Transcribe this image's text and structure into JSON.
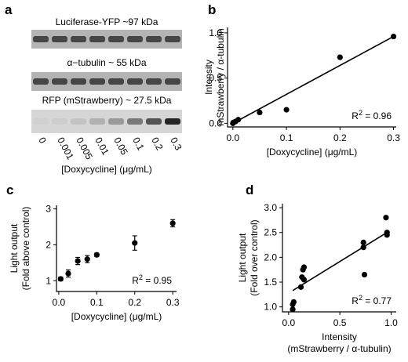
{
  "blot": {
    "panel": "a",
    "bands": [
      "Luciferase-YFP ~97 kDa",
      "α−tubulin ~ 55 kDa",
      "RFP (mStrawberry) ~ 27.5 kDa"
    ],
    "lanes": [
      "0",
      "0.001",
      "0.005",
      "0.01",
      "0.05",
      "0.1",
      "0.2",
      "0.3"
    ],
    "xlabel": "[Doxycycline] (μg/mL)"
  },
  "chart_data": [
    {
      "type": "scatter",
      "panel": "b",
      "ylabel": [
        "Intensity",
        "mStrawberry / α-tubulin"
      ],
      "xlabel": [
        "[Doxycycline] (μg/mL)"
      ],
      "x": [
        0,
        0.001,
        0.005,
        0.01,
        0.05,
        0.1,
        0.2,
        0.3
      ],
      "values": [
        0.0,
        0.01,
        0.02,
        0.04,
        0.12,
        0.15,
        0.73,
        0.96
      ],
      "fit": {
        "x": [
          0,
          0.3
        ],
        "values": [
          0.0,
          0.96
        ]
      },
      "annotation": {
        "base": "R",
        "sup": "2",
        "rest": " = 0.96"
      },
      "color": "#000000",
      "xlim": [
        -0.01,
        0.305
      ],
      "ylim": [
        -0.04,
        1.06
      ],
      "xticks": [
        {
          "value": 0,
          "label": "0.0"
        },
        0.1,
        0.2,
        0.3
      ],
      "yticks": [
        {
          "value": 0,
          "label": "0.0"
        },
        0.5,
        {
          "value": 1,
          "label": "1.0"
        }
      ]
    },
    {
      "type": "scatter",
      "panel": "c",
      "ylabel": [
        "Light output",
        "(Fold above control)"
      ],
      "xlabel": [
        "[Doxycycline] (μg/mL)"
      ],
      "x": [
        0.005,
        0.025,
        0.05,
        0.075,
        0.1,
        0.2,
        0.3
      ],
      "values": [
        1.05,
        1.2,
        1.55,
        1.6,
        1.72,
        2.05,
        2.6
      ],
      "errors": [
        0.05,
        0.1,
        0.1,
        0.1,
        0.05,
        0.2,
        0.1
      ],
      "annotation": {
        "base": "R",
        "sup": "2",
        "rest": " = 0.95"
      },
      "color": "#000000",
      "xlim": [
        -0.006,
        0.31
      ],
      "ylim": [
        0.7,
        3.1
      ],
      "xticks": [
        {
          "value": 0,
          "label": "0.0"
        },
        0.1,
        0.2,
        0.3
      ],
      "yticks": [
        1,
        2,
        3
      ]
    },
    {
      "type": "scatter",
      "panel": "d",
      "ylabel": [
        "Light output",
        "(Fold over control)"
      ],
      "xlabel": [
        "Intensity",
        "(mStrawberry / α-tubulin)"
      ],
      "x": [
        0.04,
        0.04,
        0.05,
        0.12,
        0.13,
        0.14,
        0.15,
        0.15,
        0.73,
        0.73,
        0.74,
        0.95,
        0.96,
        0.96
      ],
      "values": [
        0.95,
        1.05,
        1.1,
        1.4,
        1.6,
        1.75,
        1.8,
        1.55,
        2.3,
        2.2,
        1.65,
        2.8,
        2.5,
        2.45
      ],
      "fit": {
        "x": [
          0.04,
          0.96
        ],
        "values": [
          1.33,
          2.5
        ]
      },
      "annotation": {
        "base": "R",
        "sup": "2",
        "rest": " = 0.77"
      },
      "color": "#000000",
      "xlim": [
        -0.06,
        1.05
      ],
      "ylim": [
        0.9,
        3.08
      ],
      "xticks": [
        {
          "value": 0,
          "label": "0.0"
        },
        0.5,
        {
          "value": 1,
          "label": "1.0"
        }
      ],
      "yticks": [
        {
          "value": 1,
          "label": "1.0"
        },
        1.5,
        {
          "value": 2,
          "label": "2.0"
        },
        2.5,
        {
          "value": 3,
          "label": "3.0"
        }
      ]
    }
  ]
}
